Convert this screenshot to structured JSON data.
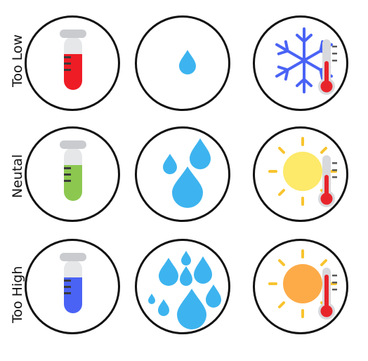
{
  "rows": [
    {
      "label": "Too Low"
    },
    {
      "label": "Neutal"
    },
    {
      "label": "Too High"
    }
  ],
  "icons": {
    "test_tube_low": {
      "name": "red-test-tube-icon",
      "liquid_color": "#ee1c25",
      "fill_level": 0.55
    },
    "test_tube_neutral": {
      "name": "green-test-tube-icon",
      "liquid_color": "#8cc850",
      "fill_level": 0.55
    },
    "test_tube_high": {
      "name": "blue-test-tube-icon",
      "liquid_color": "#4a63f5",
      "fill_level": 0.55
    },
    "water_low": {
      "name": "single-droplet-icon",
      "color": "#3db4ef",
      "count": 1
    },
    "water_neutral": {
      "name": "three-droplets-icon",
      "color": "#3db4ef",
      "count": 3
    },
    "water_high": {
      "name": "many-droplets-icon",
      "color": "#3db4ef",
      "count": 8
    },
    "temp_low": {
      "name": "snowflake-thermometer-icon",
      "snowflake_color": "#4a63f5",
      "mercury_color": "#e8242b"
    },
    "temp_neutral": {
      "name": "yellow-sun-thermometer-icon",
      "sun_color": "#fde96a",
      "ray_color": "#f8c42e",
      "mercury_color": "#e8242b"
    },
    "temp_high": {
      "name": "orange-sun-thermometer-icon",
      "sun_color": "#fdab48",
      "ray_color": "#f8c42e",
      "mercury_color": "#e8242b"
    }
  }
}
